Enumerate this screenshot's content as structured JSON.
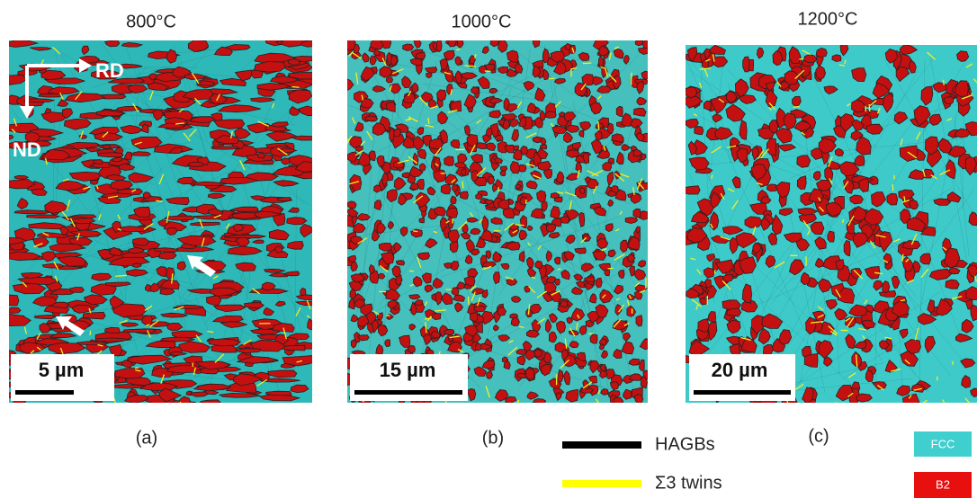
{
  "panels": [
    {
      "title": "800°C",
      "label": "(a)",
      "scale_bar": "5 µm",
      "axis_right": "RD",
      "axis_down": "ND"
    },
    {
      "title": "1000°C",
      "label": "(b)",
      "scale_bar": "15 µm"
    },
    {
      "title": "1200°C",
      "label": "(c)",
      "scale_bar": "20 µm"
    }
  ],
  "legend": {
    "lines": [
      "HAGBs",
      "Σ3 twins"
    ],
    "phases": [
      "FCC",
      "B2"
    ]
  }
}
